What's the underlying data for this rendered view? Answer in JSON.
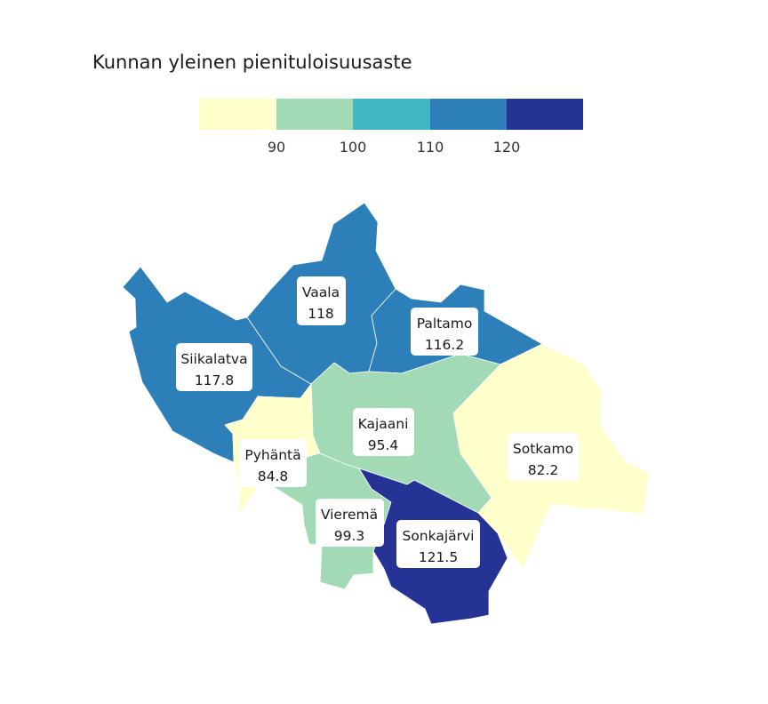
{
  "title": "Kunnan yleinen pienituloisuusaste",
  "legend": {
    "breaks": [
      90,
      100,
      110,
      120
    ],
    "tick_labels": [
      "90",
      "100",
      "110",
      "120"
    ],
    "colors": [
      "#ffffcc",
      "#a1dab4",
      "#41b6c4",
      "#2c7fb8",
      "#253494"
    ]
  },
  "municipalities": [
    {
      "id": "siikalatva",
      "name": "Siikalatva",
      "value": 117.8,
      "value_label": "117.8",
      "fill": "#2c7fb8"
    },
    {
      "id": "vaala",
      "name": "Vaala",
      "value": 118,
      "value_label": "118",
      "fill": "#2c7fb8"
    },
    {
      "id": "paltamo",
      "name": "Paltamo",
      "value": 116.2,
      "value_label": "116.2",
      "fill": "#2c7fb8"
    },
    {
      "id": "kajaani",
      "name": "Kajaani",
      "value": 95.4,
      "value_label": "95.4",
      "fill": "#a1dab4"
    },
    {
      "id": "pyhanta",
      "name": "Pyhäntä",
      "value": 84.8,
      "value_label": "84.8",
      "fill": "#ffffcc"
    },
    {
      "id": "sotkamo",
      "name": "Sotkamo",
      "value": 82.2,
      "value_label": "82.2",
      "fill": "#ffffcc"
    },
    {
      "id": "vierema",
      "name": "Vieremä",
      "value": 99.3,
      "value_label": "99.3",
      "fill": "#a1dab4"
    },
    {
      "id": "sonkajarvi",
      "name": "Sonkajärvi",
      "value": 121.5,
      "value_label": "121.5",
      "fill": "#253494"
    }
  ]
}
